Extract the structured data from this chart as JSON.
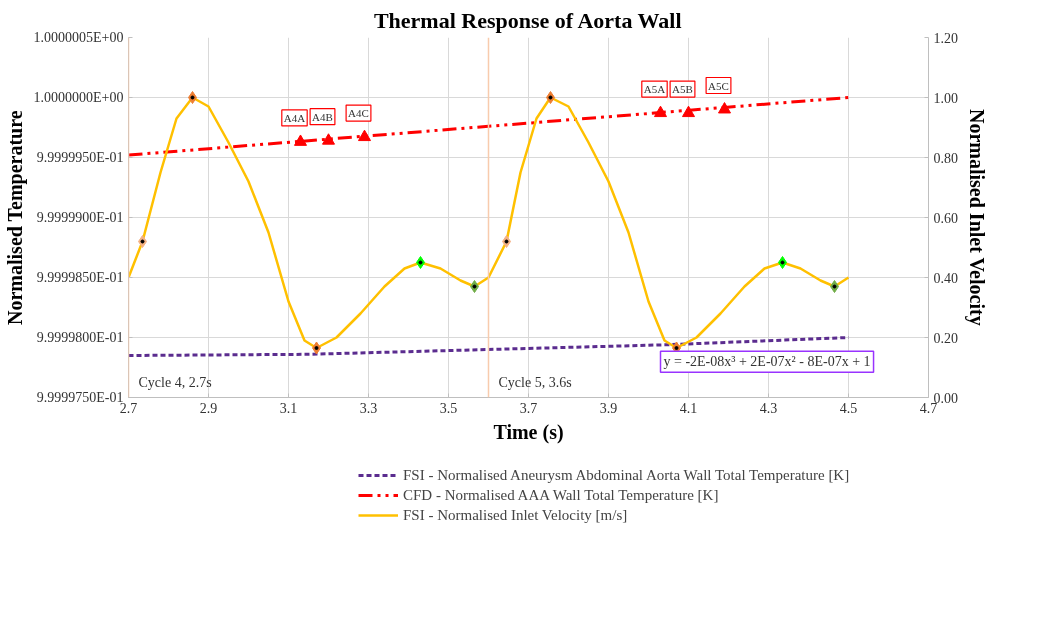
{
  "chart_data": {
    "type": "line",
    "title": "Thermal Response of Aorta Wall",
    "xlabel": "Time (s)",
    "ylabel": "Normalised Temperature",
    "y2label": "Normalised Inlet Velocity",
    "xlim": [
      2.7,
      4.7
    ],
    "xticks": [
      2.7,
      2.9,
      3.1,
      3.3,
      3.5,
      3.7,
      3.9,
      4.1,
      4.3,
      4.5,
      4.7
    ],
    "ylim": [
      0.9999975,
      1.0000005
    ],
    "yticks": [
      {
        "value": 0.9999975,
        "label": "9.9999750E-01"
      },
      {
        "value": 0.999998,
        "label": "9.9999800E-01"
      },
      {
        "value": 0.9999985,
        "label": "9.9999850E-01"
      },
      {
        "value": 0.999999,
        "label": "9.9999900E-01"
      },
      {
        "value": 0.9999995,
        "label": "9.9999950E-01"
      },
      {
        "value": 1.0,
        "label": "1.0000000E+00"
      },
      {
        "value": 1.0000005,
        "label": "1.0000005E+00"
      }
    ],
    "y2lim": [
      0,
      1.2
    ],
    "y2ticks": [
      {
        "value": 0,
        "label": "0.00"
      },
      {
        "value": 0.2,
        "label": "0.20"
      },
      {
        "value": 0.4,
        "label": "0.40"
      },
      {
        "value": 0.6,
        "label": "0.60"
      },
      {
        "value": 0.8,
        "label": "0.80"
      },
      {
        "value": 1.0,
        "label": "1.00"
      },
      {
        "value": 1.2,
        "label": "1.20"
      }
    ],
    "grid": true,
    "legend": "bottom",
    "series": [
      {
        "name": "FSI - Normalised Aneurysm Abdominal Aorta Wall Total Temperature [K]",
        "type": "line",
        "color": "#5b2c8f",
        "line_style": "dashed",
        "x": [
          2.7,
          3.15,
          3.6,
          4.05,
          4.5
        ],
        "values": [
          0.99999785,
          0.99999786,
          0.9999979,
          0.99999794,
          0.999998
        ]
      },
      {
        "name": "CFD - Normalised AAA Wall Total Temperature [K]",
        "type": "line",
        "color": "#ff0000",
        "line_style": "dashdot",
        "x": [
          2.7,
          4.5
        ],
        "values": [
          0.99999952,
          1.0
        ]
      },
      {
        "type": "scatter",
        "marker": "triangle",
        "color": "#ff0000",
        "x": [
          3.13,
          3.2,
          3.29,
          4.03,
          4.1,
          4.19
        ],
        "values": [
          0.99999963,
          0.99999964,
          0.99999967,
          0.99999987,
          0.99999987,
          0.9999999
        ]
      },
      {
        "name": "FSI - Normalised Inlet Velocity [m/s]",
        "type": "line",
        "axis": "y2",
        "color": "#ffc000",
        "line_style": "solid",
        "x": [
          2.7,
          2.735,
          2.78,
          2.82,
          2.86,
          2.9,
          2.95,
          3.0,
          3.05,
          3.1,
          3.14,
          3.17,
          3.22,
          3.28,
          3.34,
          3.39,
          3.43,
          3.48,
          3.53,
          3.565,
          3.6,
          3.645,
          3.68,
          3.72,
          3.755,
          3.8,
          3.85,
          3.9,
          3.95,
          4.0,
          4.04,
          4.07,
          4.12,
          4.18,
          4.24,
          4.29,
          4.335,
          4.38,
          4.43,
          4.465,
          4.5
        ],
        "values": [
          0.4,
          0.52,
          0.75,
          0.93,
          1.0,
          0.97,
          0.85,
          0.72,
          0.55,
          0.32,
          0.19,
          0.165,
          0.2,
          0.28,
          0.37,
          0.43,
          0.45,
          0.43,
          0.39,
          0.37,
          0.4,
          0.52,
          0.75,
          0.93,
          1.0,
          0.97,
          0.85,
          0.72,
          0.55,
          0.32,
          0.19,
          0.165,
          0.2,
          0.28,
          0.37,
          0.43,
          0.45,
          0.43,
          0.39,
          0.37,
          0.4
        ]
      },
      {
        "type": "scatter",
        "marker": "diamond",
        "axis": "y2",
        "x": [
          2.735,
          2.86,
          3.17,
          3.43,
          3.565,
          3.645,
          3.755,
          4.07,
          4.335,
          4.465
        ],
        "values": [
          0.52,
          1.0,
          0.165,
          0.45,
          0.37,
          0.52,
          1.0,
          0.165,
          0.45,
          0.37
        ],
        "colors": [
          "#f4b183",
          "#ed7d31",
          "#ed7d31",
          "#00ff00",
          "#70ad47",
          "#f4b183",
          "#ed7d31",
          "#ed7d31",
          "#00ff00",
          "#70ad47"
        ]
      }
    ],
    "ref_lines": [
      {
        "axis": "x",
        "value": 2.7,
        "label": "Cycle 4, 2.7s",
        "color": "#f8cbad"
      },
      {
        "axis": "x",
        "value": 3.6,
        "label": "Cycle 5, 3.6s",
        "color": "#f8cbad"
      }
    ],
    "annotations": [
      {
        "text": "A4A",
        "x": 3.13,
        "y": 0.99999963
      },
      {
        "text": "A4B",
        "x": 3.2,
        "y": 0.99999964
      },
      {
        "text": "A4C",
        "x": 3.29,
        "y": 0.99999967
      },
      {
        "text": "A5A",
        "x": 4.03,
        "y": 0.99999987
      },
      {
        "text": "A5B",
        "x": 4.1,
        "y": 0.99999987
      },
      {
        "text": "A5C",
        "x": 4.19,
        "y": 0.9999999
      },
      "y = -2E-08x³ + 2E-07x² - 8E-07x + 1"
    ]
  }
}
